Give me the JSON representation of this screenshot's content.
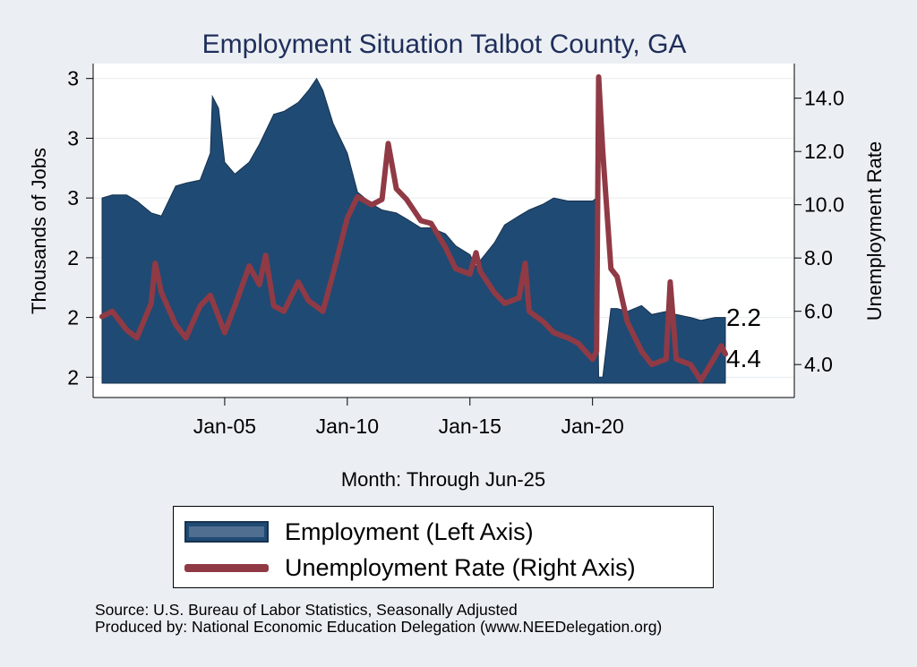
{
  "chart_data": {
    "type": "area",
    "title": "Employment Situation Talbot  County, GA",
    "xlabel": "Month: Through Jun-25",
    "ylabel_left": "Thousands of Jobs",
    "ylabel_right": "Unemployment Rate",
    "x_ticks": [
      "Jan-05",
      "Jan-10",
      "Jan-15",
      "Jan-20"
    ],
    "y_left_ticks": [
      "2",
      "2",
      "2",
      "3",
      "3",
      "3"
    ],
    "y_left_range": [
      1.98,
      3.05
    ],
    "y_right_ticks": [
      "4.0",
      "6.0",
      "8.0",
      "10.0",
      "12.0",
      "14.0"
    ],
    "y_right_range": [
      3.3,
      15.3
    ],
    "x_range": [
      "Jan-00",
      "Jun-25"
    ],
    "end_labels": {
      "employment": "2.2",
      "unemployment": "4.4"
    },
    "series": [
      {
        "name": "Employment (Left Axis)",
        "axis": "left",
        "color": "#1f4a73",
        "points": [
          [
            "Jan-00",
            2.6
          ],
          [
            "Jun-00",
            2.61
          ],
          [
            "Jan-01",
            2.61
          ],
          [
            "Jun-01",
            2.59
          ],
          [
            "Jan-02",
            2.55
          ],
          [
            "Jun-02",
            2.54
          ],
          [
            "Jan-03",
            2.64
          ],
          [
            "Jun-03",
            2.65
          ],
          [
            "Jan-04",
            2.66
          ],
          [
            "Jun-04",
            2.75
          ],
          [
            "Jul-04",
            2.94
          ],
          [
            "Oct-04",
            2.9
          ],
          [
            "Jan-05",
            2.72
          ],
          [
            "Jun-05",
            2.68
          ],
          [
            "Jan-06",
            2.72
          ],
          [
            "Jun-06",
            2.78
          ],
          [
            "Jan-07",
            2.88
          ],
          [
            "Jun-07",
            2.89
          ],
          [
            "Jan-08",
            2.92
          ],
          [
            "Jun-08",
            2.96
          ],
          [
            "Oct-08",
            3.0
          ],
          [
            "Jan-09",
            2.96
          ],
          [
            "Jun-09",
            2.85
          ],
          [
            "Jan-10",
            2.75
          ],
          [
            "Jun-10",
            2.62
          ],
          [
            "Jan-11",
            2.58
          ],
          [
            "Jun-11",
            2.56
          ],
          [
            "Jan-12",
            2.55
          ],
          [
            "Jun-12",
            2.53
          ],
          [
            "Jan-13",
            2.5
          ],
          [
            "Jun-13",
            2.5
          ],
          [
            "Jan-14",
            2.48
          ],
          [
            "Jun-14",
            2.44
          ],
          [
            "Jan-15",
            2.41
          ],
          [
            "Apr-15",
            2.37
          ],
          [
            "Jun-15",
            2.39
          ],
          [
            "Jan-16",
            2.45
          ],
          [
            "Jun-16",
            2.51
          ],
          [
            "Jan-17",
            2.54
          ],
          [
            "Jun-17",
            2.56
          ],
          [
            "Jan-18",
            2.58
          ],
          [
            "Jun-18",
            2.6
          ],
          [
            "Jan-19",
            2.59
          ],
          [
            "Jun-19",
            2.59
          ],
          [
            "Jan-20",
            2.59
          ],
          [
            "Mar-20",
            2.6
          ],
          [
            "Apr-20",
            2.0
          ],
          [
            "Jun-20",
            2.0
          ],
          [
            "Oct-20",
            2.23
          ],
          [
            "Jan-21",
            2.23
          ],
          [
            "Jun-21",
            2.22
          ],
          [
            "Jan-22",
            2.24
          ],
          [
            "Jun-22",
            2.21
          ],
          [
            "Jan-23",
            2.22
          ],
          [
            "Jun-23",
            2.21
          ],
          [
            "Jan-24",
            2.2
          ],
          [
            "Jun-24",
            2.19
          ],
          [
            "Jan-25",
            2.2
          ],
          [
            "Jun-25",
            2.2
          ]
        ]
      },
      {
        "name": "Unemployment Rate (Right Axis)",
        "axis": "right",
        "color": "#903a45",
        "points": [
          [
            "Jan-00",
            5.8
          ],
          [
            "Jun-00",
            6.0
          ],
          [
            "Jan-01",
            5.3
          ],
          [
            "Jun-01",
            5.0
          ],
          [
            "Jan-02",
            6.3
          ],
          [
            "Mar-02",
            7.8
          ],
          [
            "Jun-02",
            6.7
          ],
          [
            "Jan-03",
            5.5
          ],
          [
            "Jun-03",
            5.0
          ],
          [
            "Jan-04",
            6.2
          ],
          [
            "Jun-04",
            6.6
          ],
          [
            "Jan-05",
            5.2
          ],
          [
            "Jun-05",
            6.2
          ],
          [
            "Jan-06",
            7.7
          ],
          [
            "Jun-06",
            7.0
          ],
          [
            "Sep-06",
            8.1
          ],
          [
            "Jan-07",
            6.2
          ],
          [
            "Jun-07",
            6.0
          ],
          [
            "Jan-08",
            7.1
          ],
          [
            "Jun-08",
            6.4
          ],
          [
            "Jan-09",
            6.0
          ],
          [
            "Jun-09",
            7.4
          ],
          [
            "Jan-10",
            9.5
          ],
          [
            "Jun-10",
            10.3
          ],
          [
            "Jan-11",
            10.0
          ],
          [
            "Jun-11",
            10.2
          ],
          [
            "Sep-11",
            12.3
          ],
          [
            "Jan-12",
            10.6
          ],
          [
            "Jun-12",
            10.2
          ],
          [
            "Jan-13",
            9.4
          ],
          [
            "Jun-13",
            9.3
          ],
          [
            "Jan-14",
            8.4
          ],
          [
            "Jun-14",
            7.6
          ],
          [
            "Jan-15",
            7.4
          ],
          [
            "Apr-15",
            8.2
          ],
          [
            "Jun-15",
            7.5
          ],
          [
            "Jan-16",
            6.7
          ],
          [
            "Jun-16",
            6.3
          ],
          [
            "Jan-17",
            6.5
          ],
          [
            "Apr-17",
            7.8
          ],
          [
            "Jun-17",
            6.0
          ],
          [
            "Jan-18",
            5.6
          ],
          [
            "Jun-18",
            5.2
          ],
          [
            "Jan-19",
            5.0
          ],
          [
            "Jun-19",
            4.8
          ],
          [
            "Jan-20",
            4.2
          ],
          [
            "Mar-20",
            4.5
          ],
          [
            "Apr-20",
            14.8
          ],
          [
            "Jun-20",
            12.0
          ],
          [
            "Oct-20",
            7.6
          ],
          [
            "Jan-21",
            7.3
          ],
          [
            "Jun-21",
            5.6
          ],
          [
            "Jan-22",
            4.5
          ],
          [
            "Jun-22",
            4.0
          ],
          [
            "Jan-23",
            4.2
          ],
          [
            "Mar-23",
            7.1
          ],
          [
            "Jun-23",
            4.2
          ],
          [
            "Jan-24",
            4.0
          ],
          [
            "Jun-24",
            3.4
          ],
          [
            "Jan-25",
            4.3
          ],
          [
            "Apr-25",
            4.7
          ],
          [
            "Jun-25",
            4.4
          ]
        ]
      }
    ]
  },
  "legend": {
    "employment_label": "Employment (Left Axis)",
    "unemployment_label": "Unemployment Rate (Right Axis)"
  },
  "footer": {
    "source": "Source: U.S. Bureau of Labor Statistics, Seasonally Adjusted",
    "produced_by": "Produced by: National Economic Education Delegation (www.NEEDelegation.org)"
  }
}
